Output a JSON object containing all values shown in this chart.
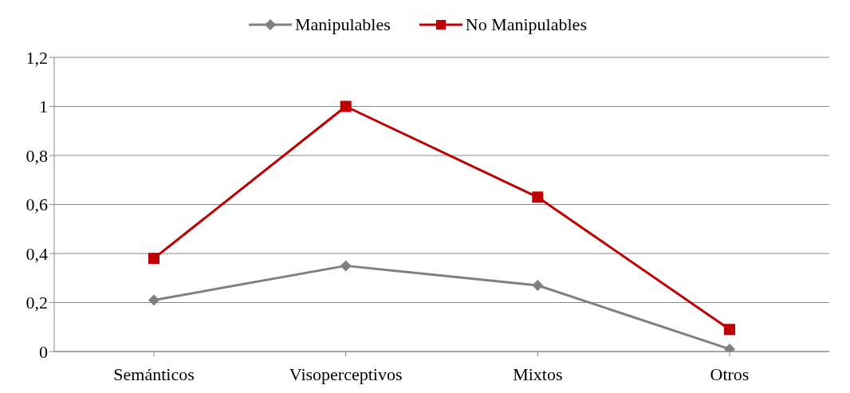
{
  "chart_data": {
    "type": "line",
    "categories": [
      "Semánticos",
      "Visoperceptivos",
      "Mixtos",
      "Otros"
    ],
    "series": [
      {
        "name": "Manipulables",
        "color": "#808080",
        "marker": "diamond",
        "values": [
          0.21,
          0.35,
          0.27,
          0.01
        ]
      },
      {
        "name": "No Manipulables",
        "color": "#c00000",
        "marker": "square",
        "values": [
          0.38,
          1,
          0.63,
          0.09
        ]
      }
    ],
    "ylim": [
      0,
      1.2
    ],
    "yticks": [
      0,
      {
        "value": 0.2,
        "label": "0,2"
      },
      {
        "value": 0.4,
        "label": "0,4"
      },
      {
        "value": 0.6,
        "label": "0,6"
      },
      {
        "value": 0.8,
        "label": "0,8"
      },
      1,
      {
        "value": 1.2,
        "label": "1,2"
      }
    ],
    "grid": "y",
    "legend": "top",
    "line_style": "solid"
  }
}
